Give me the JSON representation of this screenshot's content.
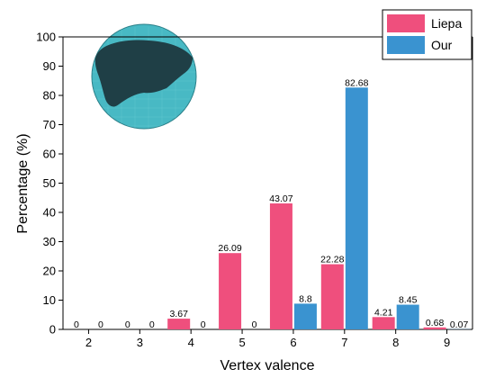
{
  "colors": {
    "liepa": "#ef4f7d",
    "our": "#3a93d0",
    "mesh_dark": "#1f3f46",
    "mesh_light": "#48b9c4"
  },
  "chart_data": {
    "type": "bar",
    "xlabel": "Vertex valence",
    "ylabel": "Percentage (%)",
    "categories": [
      "2",
      "3",
      "4",
      "5",
      "6",
      "7",
      "8",
      "9"
    ],
    "ylim": [
      0,
      100
    ],
    "yticks": [
      0,
      10,
      20,
      30,
      40,
      50,
      60,
      70,
      80,
      90,
      100
    ],
    "legend_position": "top-right",
    "series": [
      {
        "name": "Liepa",
        "color": "#ef4f7d",
        "values": [
          0,
          0,
          3.67,
          26.09,
          43.07,
          22.28,
          4.21,
          0.68
        ],
        "labels": [
          "0",
          "0",
          "3.67",
          "26.09",
          "43.07",
          "22.28",
          "4.21",
          "0.68"
        ]
      },
      {
        "name": "Our",
        "color": "#3a93d0",
        "values": [
          0,
          0,
          0,
          0,
          8.8,
          82.68,
          8.45,
          0.07
        ],
        "labels": [
          "0",
          "0",
          "0",
          "0",
          "8.8",
          "82.68",
          "8.45",
          "0.07"
        ]
      }
    ]
  }
}
